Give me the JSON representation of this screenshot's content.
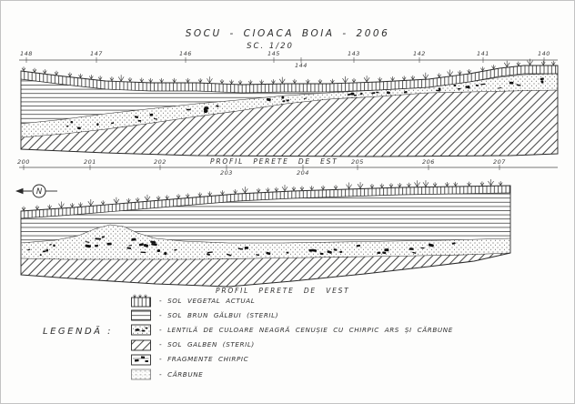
{
  "title": "SOCU - CIOACA BOIA - 2006",
  "scale_label": "SC. 1/20",
  "north_label": "N",
  "east_profile": {
    "caption": "PROFIL PERETE DE EST",
    "top_ruler_numbers": [
      "148",
      "147",
      "146",
      "145",
      "144",
      "143",
      "142",
      "141",
      "140"
    ],
    "bottom_ruler_numbers": [
      "200",
      "201",
      "202",
      "203",
      "204",
      "205",
      "206",
      "207"
    ]
  },
  "west_profile": {
    "caption": "PROFIL PERETE DE VEST"
  },
  "legend": {
    "title": "LEGENDĂ :",
    "items": [
      {
        "swatch": "sol-vegetal",
        "label": "- SOL VEGETAL ACTUAL"
      },
      {
        "swatch": "sol-brun-galbui",
        "label": "- SOL BRUN GĂLBUI (STERIL)"
      },
      {
        "swatch": "lentila-neagra",
        "label": "- LENTILĂ DE CULOARE NEAGRĂ CENUȘIE CU CHIRPIC ARS ȘI CĂRBUNE"
      },
      {
        "swatch": "sol-galben",
        "label": "- SOL GALBEN (STERIL)"
      },
      {
        "swatch": "fragmente-chirpic",
        "label": "- FRAGMENTE CHIRPIC"
      },
      {
        "swatch": "carbune",
        "label": "- CĂRBUNE"
      }
    ]
  },
  "colors": {
    "ink": "#2a2a2a",
    "paper": "#fdfdfc"
  }
}
